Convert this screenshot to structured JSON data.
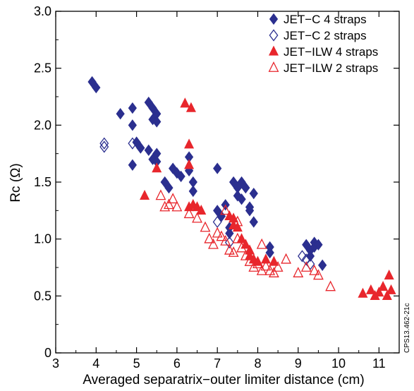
{
  "chart_data": {
    "type": "scatter",
    "xlabel": "Averaged separatrix−outer limiter distance (cm)",
    "ylabel": "Rc (Ω)",
    "xlim": [
      3,
      11.5
    ],
    "ylim": [
      0,
      3.0
    ],
    "x_ticks": [
      "3",
      "4",
      "5",
      "6",
      "7",
      "8",
      "9",
      "10",
      "11"
    ],
    "y_ticks": [
      "0",
      "0.5",
      "1.0",
      "1.5",
      "2.0",
      "2.5",
      "3.0"
    ],
    "x_tick_values": [
      3,
      4,
      5,
      6,
      7,
      8,
      9,
      10,
      11
    ],
    "y_tick_values": [
      0,
      0.5,
      1.0,
      1.5,
      2.0,
      2.5,
      3.0
    ],
    "legend_position": "top-right",
    "side_label": "CPS13.462-21c",
    "series": [
      {
        "name": "JET−C 4 straps",
        "marker": "diamond",
        "filled": true,
        "color": "#2b2f8f",
        "points": [
          [
            3.9,
            2.38
          ],
          [
            4.0,
            2.33
          ],
          [
            4.6,
            2.1
          ],
          [
            4.9,
            2.15
          ],
          [
            4.9,
            2.0
          ],
          [
            4.9,
            1.65
          ],
          [
            5.0,
            1.85
          ],
          [
            5.1,
            1.8
          ],
          [
            5.3,
            1.78
          ],
          [
            5.3,
            2.2
          ],
          [
            5.4,
            2.15
          ],
          [
            5.4,
            2.05
          ],
          [
            5.5,
            2.1
          ],
          [
            5.5,
            2.03
          ],
          [
            5.5,
            1.75
          ],
          [
            5.4,
            1.7
          ],
          [
            5.5,
            1.68
          ],
          [
            5.7,
            1.5
          ],
          [
            5.8,
            1.45
          ],
          [
            5.9,
            1.62
          ],
          [
            6.0,
            1.58
          ],
          [
            6.1,
            1.55
          ],
          [
            6.3,
            1.6
          ],
          [
            6.3,
            1.72
          ],
          [
            6.4,
            1.5
          ],
          [
            6.4,
            1.42
          ],
          [
            7.0,
            1.62
          ],
          [
            7.0,
            1.25
          ],
          [
            7.1,
            1.2
          ],
          [
            7.2,
            1.3
          ],
          [
            7.3,
            1.1
          ],
          [
            7.3,
            1.05
          ],
          [
            7.4,
            1.5
          ],
          [
            7.5,
            1.45
          ],
          [
            7.5,
            1.38
          ],
          [
            7.6,
            1.5
          ],
          [
            7.6,
            1.35
          ],
          [
            7.7,
            1.45
          ],
          [
            7.8,
            1.28
          ],
          [
            7.8,
            1.25
          ],
          [
            7.9,
            1.15
          ],
          [
            7.9,
            1.4
          ],
          [
            8.3,
            0.93
          ],
          [
            8.3,
            0.88
          ],
          [
            9.2,
            0.95
          ],
          [
            9.3,
            0.9
          ],
          [
            9.3,
            0.85
          ],
          [
            9.4,
            0.97
          ],
          [
            9.4,
            0.93
          ],
          [
            9.5,
            0.95
          ],
          [
            9.6,
            0.77
          ]
        ]
      },
      {
        "name": "JET−C 2 straps",
        "marker": "diamond",
        "filled": false,
        "color": "#2b2f8f",
        "points": [
          [
            4.2,
            1.84
          ],
          [
            4.2,
            1.81
          ],
          [
            4.9,
            1.84
          ],
          [
            7.0,
            1.15
          ],
          [
            7.3,
            0.97
          ],
          [
            9.1,
            0.85
          ],
          [
            9.2,
            0.82
          ],
          [
            9.3,
            0.78
          ]
        ]
      },
      {
        "name": "JET−ILW 4 straps",
        "marker": "triangle",
        "filled": true,
        "color": "#e8262c",
        "points": [
          [
            5.2,
            1.38
          ],
          [
            5.5,
            1.62
          ],
          [
            6.2,
            2.19
          ],
          [
            6.35,
            2.15
          ],
          [
            6.3,
            1.83
          ],
          [
            6.3,
            1.65
          ],
          [
            6.3,
            1.28
          ],
          [
            6.4,
            1.3
          ],
          [
            6.5,
            1.28
          ],
          [
            6.6,
            1.25
          ],
          [
            7.3,
            1.2
          ],
          [
            7.4,
            1.18
          ],
          [
            7.4,
            1.12
          ],
          [
            7.5,
            1.1
          ],
          [
            7.6,
            1.0
          ],
          [
            7.7,
            0.95
          ],
          [
            7.8,
            0.9
          ],
          [
            7.8,
            0.85
          ],
          [
            7.9,
            0.82
          ],
          [
            8.0,
            0.8
          ],
          [
            8.2,
            0.82
          ],
          [
            8.4,
            0.8
          ],
          [
            10.6,
            0.52
          ],
          [
            10.8,
            0.55
          ],
          [
            10.9,
            0.5
          ],
          [
            11.0,
            0.53
          ],
          [
            11.1,
            0.58
          ],
          [
            11.2,
            0.5
          ],
          [
            11.25,
            0.68
          ],
          [
            11.3,
            0.55
          ]
        ]
      },
      {
        "name": "JET−ILW 2 straps",
        "marker": "triangle",
        "filled": false,
        "color": "#e8262c",
        "points": [
          [
            5.6,
            1.38
          ],
          [
            5.7,
            1.28
          ],
          [
            5.8,
            1.3
          ],
          [
            5.9,
            1.35
          ],
          [
            6.0,
            1.28
          ],
          [
            6.3,
            1.22
          ],
          [
            6.5,
            1.18
          ],
          [
            6.7,
            1.1
          ],
          [
            6.8,
            1.0
          ],
          [
            6.9,
            0.95
          ],
          [
            7.0,
            1.05
          ],
          [
            7.1,
            1.02
          ],
          [
            7.2,
            0.98
          ],
          [
            7.3,
            0.9
          ],
          [
            7.4,
            0.88
          ],
          [
            7.5,
            1.0
          ],
          [
            7.6,
            0.92
          ],
          [
            7.7,
            0.85
          ],
          [
            7.8,
            0.8
          ],
          [
            7.9,
            0.75
          ],
          [
            8.0,
            0.78
          ],
          [
            8.1,
            0.72
          ],
          [
            8.2,
            0.76
          ],
          [
            8.3,
            0.72
          ],
          [
            8.4,
            0.7
          ],
          [
            8.5,
            0.75
          ],
          [
            8.7,
            0.82
          ],
          [
            9.0,
            0.7
          ],
          [
            9.2,
            0.75
          ],
          [
            9.4,
            0.72
          ],
          [
            9.5,
            0.68
          ],
          [
            9.8,
            0.58
          ],
          [
            8.1,
            0.95
          ],
          [
            7.2,
            1.25
          ],
          [
            7.5,
            1.15
          ]
        ]
      }
    ]
  }
}
